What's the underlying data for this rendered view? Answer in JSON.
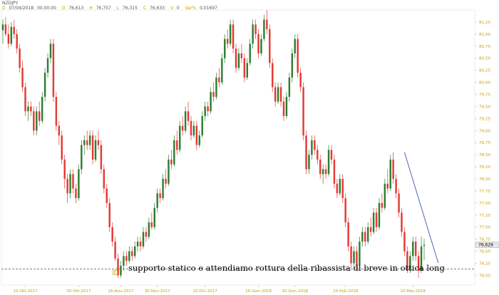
{
  "header": {
    "symbol": "NZDJPY",
    "date_label": "D",
    "date": "07/04/2018",
    "time": "00.00.00",
    "open_label": "O",
    "open": "76,613",
    "high_label": "H",
    "high": "76,757",
    "low_label": "L",
    "low": "76,315",
    "close_label": "C",
    "close": "76,633",
    "vol_label": "V",
    "vol": "0",
    "var_label": "Var%",
    "var": "0,01697"
  },
  "annotation": {
    "text": "supporto statico e attendiamo rottura della ribassista di breve in ottica long",
    "marker": "D"
  },
  "colors": {
    "up": "#2e7d32",
    "down": "#e53935",
    "support_line": "#555555",
    "trendline": "#3f51b5",
    "axis_text": "#c8a000"
  },
  "chart_data": {
    "type": "candlestick",
    "y_range": [
      75.8,
      81.5
    ],
    "y_ticks": [
      "81,25",
      "81,00",
      "80,75",
      "80,50",
      "80,25",
      "80,00",
      "79,75",
      "79,50",
      "79,25",
      "79,00",
      "78,75",
      "78,50",
      "78,25",
      "78,00",
      "77,75",
      "77,50",
      "77,25",
      "77,00",
      "76,75",
      "76,50",
      "76,25",
      "76,00"
    ],
    "x_ticks": [
      "10-Ott-2017",
      "30-Ott-2017",
      "16-Nov-2017",
      "30-Nov-2017",
      "20-Dic-2017",
      "16-Gen-2018",
      "30-Gen-2018",
      "20-Feb-2018",
      "20-Mar-2018"
    ],
    "last_price_label": "76,629",
    "support_level": 76.13,
    "trendline": {
      "from": {
        "bar": 143,
        "price": 78.55
      },
      "to": {
        "bar": 155,
        "price": 76.26
      }
    },
    "candles": [
      {
        "o": 81.08,
        "h": 81.3,
        "l": 80.8,
        "c": 81.2
      },
      {
        "o": 81.2,
        "h": 81.35,
        "l": 80.95,
        "c": 81.0
      },
      {
        "o": 81.0,
        "h": 81.2,
        "l": 80.7,
        "c": 80.8
      },
      {
        "o": 80.8,
        "h": 81.25,
        "l": 80.75,
        "c": 81.15
      },
      {
        "o": 81.15,
        "h": 81.3,
        "l": 80.9,
        "c": 81.0
      },
      {
        "o": 81.0,
        "h": 81.1,
        "l": 80.6,
        "c": 80.7
      },
      {
        "o": 80.7,
        "h": 80.8,
        "l": 80.2,
        "c": 80.3
      },
      {
        "o": 80.3,
        "h": 80.45,
        "l": 79.8,
        "c": 79.9
      },
      {
        "o": 79.9,
        "h": 80.0,
        "l": 79.3,
        "c": 79.4
      },
      {
        "o": 79.4,
        "h": 79.6,
        "l": 79.2,
        "c": 79.5
      },
      {
        "o": 79.5,
        "h": 79.6,
        "l": 79.3,
        "c": 79.4
      },
      {
        "o": 79.4,
        "h": 79.5,
        "l": 78.9,
        "c": 79.0
      },
      {
        "o": 79.0,
        "h": 79.5,
        "l": 78.9,
        "c": 79.4
      },
      {
        "o": 79.4,
        "h": 79.6,
        "l": 79.1,
        "c": 79.2
      },
      {
        "o": 79.2,
        "h": 79.8,
        "l": 79.15,
        "c": 79.7
      },
      {
        "o": 79.7,
        "h": 80.3,
        "l": 79.6,
        "c": 80.2
      },
      {
        "o": 80.2,
        "h": 80.6,
        "l": 80.1,
        "c": 80.5
      },
      {
        "o": 80.5,
        "h": 80.9,
        "l": 80.4,
        "c": 80.8
      },
      {
        "o": 80.8,
        "h": 80.9,
        "l": 79.6,
        "c": 79.7
      },
      {
        "o": 79.7,
        "h": 79.8,
        "l": 79.0,
        "c": 79.1
      },
      {
        "o": 79.1,
        "h": 79.2,
        "l": 78.7,
        "c": 78.9
      },
      {
        "o": 78.9,
        "h": 79.0,
        "l": 78.3,
        "c": 78.4
      },
      {
        "o": 78.4,
        "h": 78.5,
        "l": 77.8,
        "c": 78.0
      },
      {
        "o": 78.0,
        "h": 78.1,
        "l": 77.5,
        "c": 77.7
      },
      {
        "o": 77.7,
        "h": 78.2,
        "l": 77.6,
        "c": 78.1
      },
      {
        "o": 78.1,
        "h": 78.2,
        "l": 77.7,
        "c": 77.8
      },
      {
        "o": 77.8,
        "h": 77.9,
        "l": 77.5,
        "c": 77.6
      },
      {
        "o": 77.6,
        "h": 78.3,
        "l": 77.55,
        "c": 78.2
      },
      {
        "o": 78.2,
        "h": 78.8,
        "l": 78.1,
        "c": 78.7
      },
      {
        "o": 78.7,
        "h": 78.9,
        "l": 78.5,
        "c": 78.8
      },
      {
        "o": 78.8,
        "h": 79.0,
        "l": 78.6,
        "c": 78.7
      },
      {
        "o": 78.7,
        "h": 79.0,
        "l": 78.6,
        "c": 78.9
      },
      {
        "o": 78.9,
        "h": 79.0,
        "l": 78.3,
        "c": 78.4
      },
      {
        "o": 78.4,
        "h": 78.9,
        "l": 78.35,
        "c": 78.8
      },
      {
        "o": 78.8,
        "h": 79.0,
        "l": 78.6,
        "c": 78.7
      },
      {
        "o": 78.7,
        "h": 78.8,
        "l": 78.1,
        "c": 78.2
      },
      {
        "o": 78.2,
        "h": 78.3,
        "l": 77.7,
        "c": 77.8
      },
      {
        "o": 77.8,
        "h": 77.9,
        "l": 77.4,
        "c": 77.5
      },
      {
        "o": 77.5,
        "h": 77.6,
        "l": 76.9,
        "c": 77.0
      },
      {
        "o": 77.0,
        "h": 77.1,
        "l": 76.6,
        "c": 76.7
      },
      {
        "o": 76.7,
        "h": 76.8,
        "l": 76.3,
        "c": 76.35
      },
      {
        "o": 76.35,
        "h": 76.45,
        "l": 75.95,
        "c": 76.0
      },
      {
        "o": 76.0,
        "h": 76.3,
        "l": 75.95,
        "c": 76.2
      },
      {
        "o": 76.2,
        "h": 76.5,
        "l": 76.1,
        "c": 76.4
      },
      {
        "o": 76.4,
        "h": 76.5,
        "l": 76.2,
        "c": 76.3
      },
      {
        "o": 76.3,
        "h": 76.6,
        "l": 76.25,
        "c": 76.5
      },
      {
        "o": 76.5,
        "h": 76.6,
        "l": 76.3,
        "c": 76.4
      },
      {
        "o": 76.4,
        "h": 76.7,
        "l": 76.35,
        "c": 76.6
      },
      {
        "o": 76.6,
        "h": 76.8,
        "l": 76.5,
        "c": 76.7
      },
      {
        "o": 76.7,
        "h": 76.8,
        "l": 76.5,
        "c": 76.6
      },
      {
        "o": 76.6,
        "h": 77.0,
        "l": 76.55,
        "c": 76.9
      },
      {
        "o": 76.9,
        "h": 77.0,
        "l": 76.7,
        "c": 76.8
      },
      {
        "o": 76.8,
        "h": 77.2,
        "l": 76.75,
        "c": 77.1
      },
      {
        "o": 77.1,
        "h": 77.3,
        "l": 76.95,
        "c": 77.0
      },
      {
        "o": 77.0,
        "h": 77.5,
        "l": 76.95,
        "c": 77.4
      },
      {
        "o": 77.4,
        "h": 77.8,
        "l": 77.3,
        "c": 77.7
      },
      {
        "o": 77.7,
        "h": 77.8,
        "l": 77.5,
        "c": 77.6
      },
      {
        "o": 77.6,
        "h": 78.1,
        "l": 77.55,
        "c": 78.0
      },
      {
        "o": 78.0,
        "h": 78.2,
        "l": 77.8,
        "c": 77.9
      },
      {
        "o": 77.9,
        "h": 78.5,
        "l": 77.85,
        "c": 78.4
      },
      {
        "o": 78.4,
        "h": 78.6,
        "l": 78.2,
        "c": 78.3
      },
      {
        "o": 78.3,
        "h": 78.9,
        "l": 78.25,
        "c": 78.8
      },
      {
        "o": 78.8,
        "h": 79.0,
        "l": 78.5,
        "c": 78.6
      },
      {
        "o": 78.6,
        "h": 79.2,
        "l": 78.55,
        "c": 79.1
      },
      {
        "o": 79.1,
        "h": 79.3,
        "l": 78.9,
        "c": 79.0
      },
      {
        "o": 79.0,
        "h": 79.5,
        "l": 78.95,
        "c": 79.4
      },
      {
        "o": 79.4,
        "h": 79.6,
        "l": 79.1,
        "c": 79.2
      },
      {
        "o": 79.2,
        "h": 79.3,
        "l": 78.8,
        "c": 78.9
      },
      {
        "o": 78.9,
        "h": 79.2,
        "l": 78.85,
        "c": 79.1
      },
      {
        "o": 79.1,
        "h": 79.2,
        "l": 78.6,
        "c": 78.7
      },
      {
        "o": 78.7,
        "h": 79.0,
        "l": 78.65,
        "c": 78.9
      },
      {
        "o": 78.9,
        "h": 79.4,
        "l": 78.85,
        "c": 79.3
      },
      {
        "o": 79.3,
        "h": 79.6,
        "l": 79.2,
        "c": 79.5
      },
      {
        "o": 79.5,
        "h": 79.6,
        "l": 79.3,
        "c": 79.4
      },
      {
        "o": 79.4,
        "h": 79.9,
        "l": 79.35,
        "c": 79.8
      },
      {
        "o": 79.8,
        "h": 80.0,
        "l": 79.6,
        "c": 79.7
      },
      {
        "o": 79.7,
        "h": 80.2,
        "l": 79.65,
        "c": 80.1
      },
      {
        "o": 80.1,
        "h": 80.3,
        "l": 79.9,
        "c": 80.0
      },
      {
        "o": 80.0,
        "h": 80.6,
        "l": 79.95,
        "c": 80.5
      },
      {
        "o": 80.5,
        "h": 81.0,
        "l": 80.4,
        "c": 80.9
      },
      {
        "o": 80.9,
        "h": 81.1,
        "l": 80.7,
        "c": 80.8
      },
      {
        "o": 80.8,
        "h": 81.3,
        "l": 80.75,
        "c": 81.2
      },
      {
        "o": 81.2,
        "h": 81.3,
        "l": 80.6,
        "c": 80.7
      },
      {
        "o": 80.7,
        "h": 80.8,
        "l": 80.2,
        "c": 80.3
      },
      {
        "o": 80.3,
        "h": 80.7,
        "l": 80.25,
        "c": 80.6
      },
      {
        "o": 80.6,
        "h": 80.8,
        "l": 80.4,
        "c": 80.5
      },
      {
        "o": 80.5,
        "h": 80.6,
        "l": 80.0,
        "c": 80.1
      },
      {
        "o": 80.1,
        "h": 80.5,
        "l": 80.05,
        "c": 80.4
      },
      {
        "o": 80.4,
        "h": 80.9,
        "l": 80.35,
        "c": 80.8
      },
      {
        "o": 80.8,
        "h": 81.3,
        "l": 80.7,
        "c": 81.2
      },
      {
        "o": 81.2,
        "h": 81.3,
        "l": 80.9,
        "c": 81.0
      },
      {
        "o": 81.0,
        "h": 81.1,
        "l": 80.5,
        "c": 80.6
      },
      {
        "o": 80.6,
        "h": 81.0,
        "l": 80.55,
        "c": 80.9
      },
      {
        "o": 80.9,
        "h": 81.4,
        "l": 80.85,
        "c": 81.3
      },
      {
        "o": 81.3,
        "h": 81.5,
        "l": 81.0,
        "c": 81.1
      },
      {
        "o": 81.1,
        "h": 81.2,
        "l": 80.3,
        "c": 80.4
      },
      {
        "o": 80.4,
        "h": 80.5,
        "l": 79.8,
        "c": 79.9
      },
      {
        "o": 79.9,
        "h": 80.0,
        "l": 79.5,
        "c": 79.6
      },
      {
        "o": 79.6,
        "h": 80.0,
        "l": 79.55,
        "c": 79.9
      },
      {
        "o": 79.9,
        "h": 80.0,
        "l": 79.5,
        "c": 79.6
      },
      {
        "o": 79.6,
        "h": 79.7,
        "l": 79.2,
        "c": 79.3
      },
      {
        "o": 79.3,
        "h": 79.8,
        "l": 79.25,
        "c": 79.7
      },
      {
        "o": 79.7,
        "h": 80.2,
        "l": 79.6,
        "c": 80.1
      },
      {
        "o": 80.1,
        "h": 80.7,
        "l": 80.0,
        "c": 80.6
      },
      {
        "o": 80.6,
        "h": 81.0,
        "l": 80.5,
        "c": 80.9
      },
      {
        "o": 80.9,
        "h": 81.0,
        "l": 80.1,
        "c": 80.2
      },
      {
        "o": 80.2,
        "h": 80.3,
        "l": 79.8,
        "c": 79.9
      },
      {
        "o": 79.9,
        "h": 80.0,
        "l": 78.8,
        "c": 78.9
      },
      {
        "o": 78.9,
        "h": 79.0,
        "l": 78.1,
        "c": 78.2
      },
      {
        "o": 78.2,
        "h": 78.6,
        "l": 78.1,
        "c": 78.5
      },
      {
        "o": 78.5,
        "h": 78.9,
        "l": 78.4,
        "c": 78.8
      },
      {
        "o": 78.8,
        "h": 78.9,
        "l": 78.5,
        "c": 78.6
      },
      {
        "o": 78.6,
        "h": 78.7,
        "l": 78.3,
        "c": 78.4
      },
      {
        "o": 78.4,
        "h": 78.5,
        "l": 78.0,
        "c": 78.1
      },
      {
        "o": 78.1,
        "h": 78.3,
        "l": 77.9,
        "c": 78.2
      },
      {
        "o": 78.2,
        "h": 78.3,
        "l": 78.0,
        "c": 78.1
      },
      {
        "o": 78.1,
        "h": 78.7,
        "l": 78.05,
        "c": 78.6
      },
      {
        "o": 78.6,
        "h": 78.7,
        "l": 78.3,
        "c": 78.4
      },
      {
        "o": 78.4,
        "h": 78.5,
        "l": 77.8,
        "c": 77.9
      },
      {
        "o": 77.9,
        "h": 78.0,
        "l": 77.6,
        "c": 77.7
      },
      {
        "o": 77.7,
        "h": 78.1,
        "l": 77.65,
        "c": 78.0
      },
      {
        "o": 78.0,
        "h": 78.1,
        "l": 77.5,
        "c": 77.6
      },
      {
        "o": 77.6,
        "h": 77.7,
        "l": 77.0,
        "c": 77.1
      },
      {
        "o": 77.1,
        "h": 77.2,
        "l": 76.5,
        "c": 76.6
      },
      {
        "o": 76.6,
        "h": 76.7,
        "l": 76.15,
        "c": 76.25
      },
      {
        "o": 76.25,
        "h": 76.6,
        "l": 76.15,
        "c": 76.5
      },
      {
        "o": 76.5,
        "h": 76.6,
        "l": 76.1,
        "c": 76.2
      },
      {
        "o": 76.2,
        "h": 76.8,
        "l": 76.15,
        "c": 76.7
      },
      {
        "o": 76.7,
        "h": 77.0,
        "l": 76.6,
        "c": 76.9
      },
      {
        "o": 76.9,
        "h": 77.0,
        "l": 76.6,
        "c": 76.7
      },
      {
        "o": 76.7,
        "h": 77.1,
        "l": 76.65,
        "c": 77.0
      },
      {
        "o": 77.0,
        "h": 77.2,
        "l": 76.8,
        "c": 76.9
      },
      {
        "o": 76.9,
        "h": 77.4,
        "l": 76.85,
        "c": 77.3
      },
      {
        "o": 77.3,
        "h": 77.4,
        "l": 76.9,
        "c": 77.0
      },
      {
        "o": 77.0,
        "h": 77.6,
        "l": 76.95,
        "c": 77.5
      },
      {
        "o": 77.5,
        "h": 77.7,
        "l": 77.3,
        "c": 77.4
      },
      {
        "o": 77.4,
        "h": 78.0,
        "l": 77.35,
        "c": 77.9
      },
      {
        "o": 77.9,
        "h": 78.2,
        "l": 77.7,
        "c": 77.8
      },
      {
        "o": 77.8,
        "h": 78.5,
        "l": 77.75,
        "c": 78.4
      },
      {
        "o": 78.4,
        "h": 78.55,
        "l": 77.9,
        "c": 78.0
      },
      {
        "o": 78.0,
        "h": 78.1,
        "l": 77.6,
        "c": 77.7
      },
      {
        "o": 77.7,
        "h": 77.8,
        "l": 77.2,
        "c": 77.3
      },
      {
        "o": 77.3,
        "h": 77.4,
        "l": 76.8,
        "c": 76.9
      },
      {
        "o": 76.9,
        "h": 77.0,
        "l": 76.4,
        "c": 76.5
      },
      {
        "o": 76.5,
        "h": 76.6,
        "l": 76.05,
        "c": 76.1
      },
      {
        "o": 76.1,
        "h": 76.5,
        "l": 76.05,
        "c": 76.4
      },
      {
        "o": 76.4,
        "h": 76.8,
        "l": 76.3,
        "c": 76.7
      },
      {
        "o": 76.7,
        "h": 76.8,
        "l": 76.3,
        "c": 76.4
      },
      {
        "o": 76.4,
        "h": 76.5,
        "l": 75.95,
        "c": 76.1
      },
      {
        "o": 76.1,
        "h": 76.8,
        "l": 76.05,
        "c": 76.6
      },
      {
        "o": 76.613,
        "h": 76.757,
        "l": 76.315,
        "c": 76.633
      }
    ]
  }
}
